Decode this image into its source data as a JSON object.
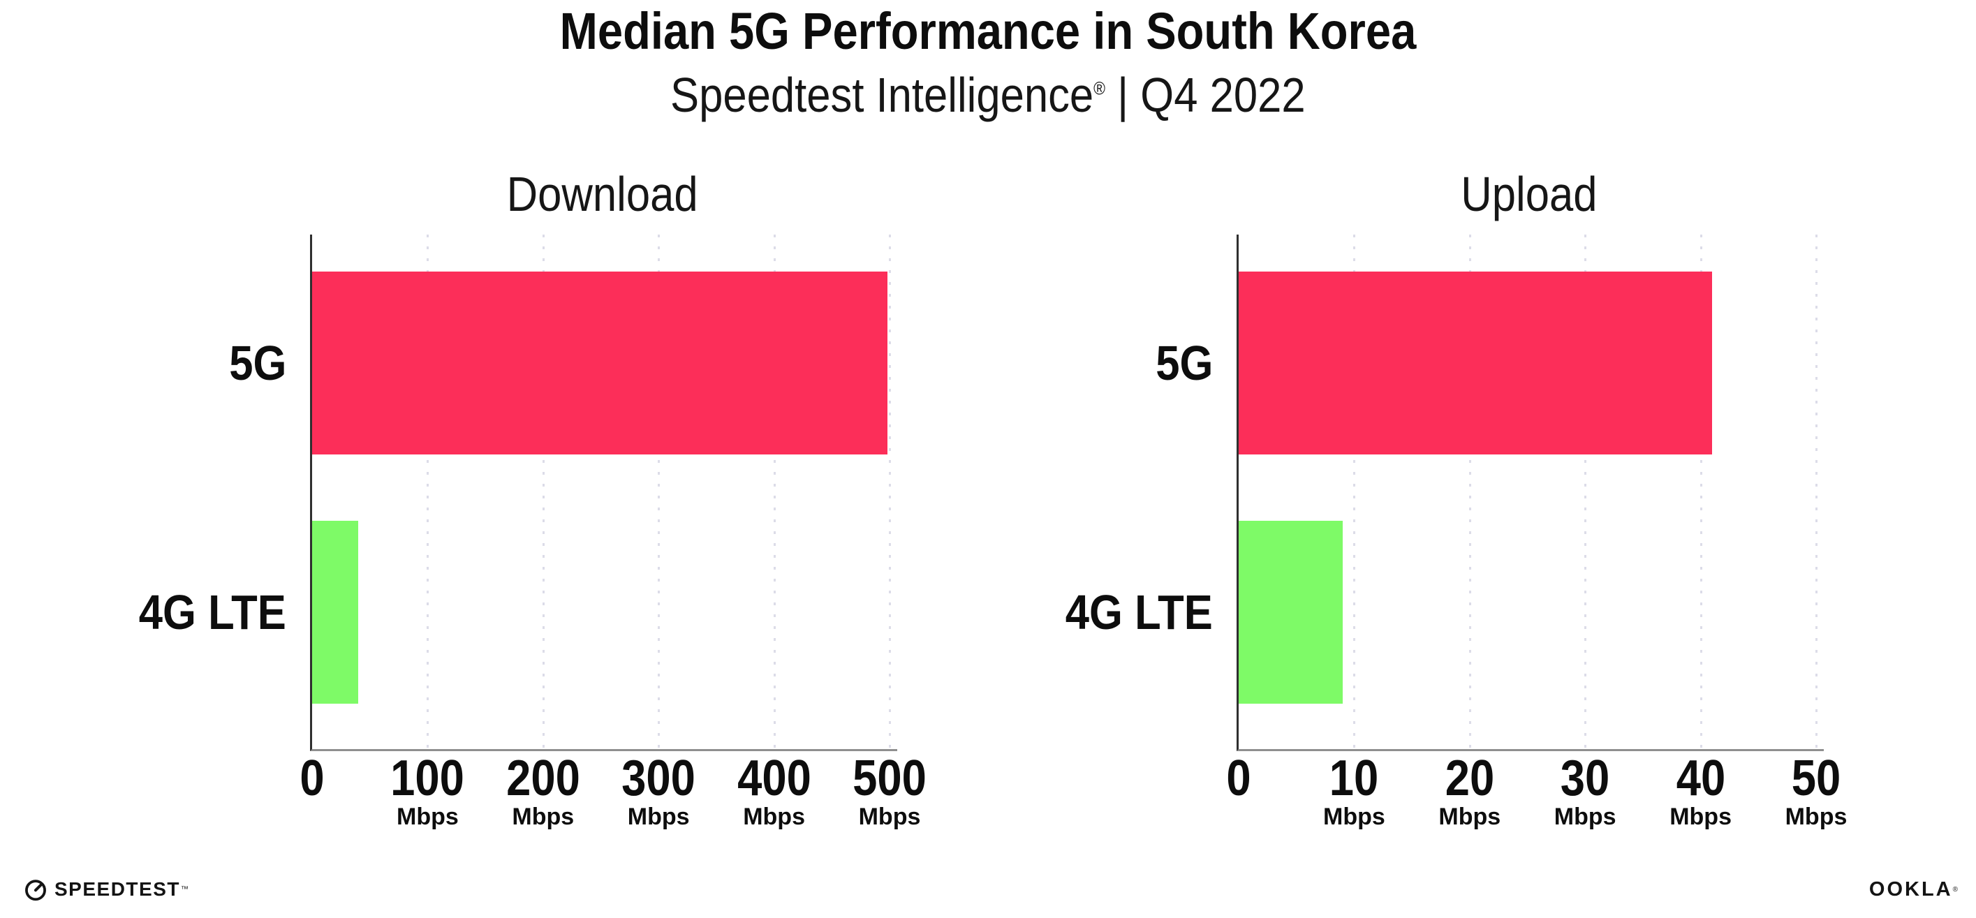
{
  "header": {
    "title": "Median 5G Performance in South Korea",
    "subtitle_brand": "Speedtest Intelligence",
    "subtitle_reg": "®",
    "subtitle_rest": " | Q4 2022"
  },
  "chart_data": [
    {
      "type": "bar",
      "orientation": "horizontal",
      "title": "Download",
      "categories": [
        "5G",
        "4G LTE"
      ],
      "values": [
        498,
        40
      ],
      "unit": "Mbps",
      "xlim": [
        0,
        500
      ],
      "xticks": [
        0,
        100,
        200,
        300,
        400,
        500
      ],
      "xtick_unit": "Mbps",
      "grid": "vertical-dotted",
      "legend": "none",
      "bar_colors": [
        "#FC2E59",
        "#7EFA67"
      ]
    },
    {
      "type": "bar",
      "orientation": "horizontal",
      "title": "Upload",
      "categories": [
        "5G",
        "4G LTE"
      ],
      "values": [
        41,
        9
      ],
      "unit": "Mbps",
      "xlim": [
        0,
        50
      ],
      "xticks": [
        0,
        10,
        20,
        30,
        40,
        50
      ],
      "xtick_unit": "Mbps",
      "grid": "vertical-dotted",
      "legend": "none",
      "bar_colors": [
        "#FC2E59",
        "#7EFA67"
      ]
    }
  ],
  "colors": {
    "bar_5g": "#FC2E59",
    "bar_4g_lte": "#7EFA67",
    "gridline": "#DCDCE8",
    "axis_left": "#2F2F2F",
    "axis_bottom": "#8F8F8F"
  },
  "footer": {
    "speedtest_label": "SPEEDTEST",
    "speedtest_mark": "™",
    "ookla_label": "OOKLA",
    "ookla_mark": "®"
  }
}
